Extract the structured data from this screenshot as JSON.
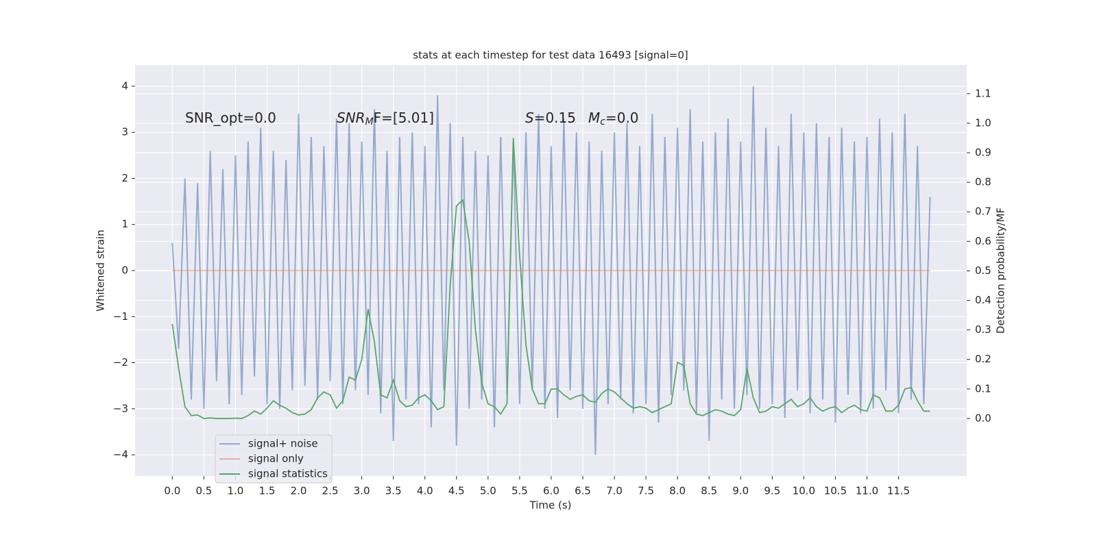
{
  "chart_data": {
    "type": "line",
    "title": "stats at each timestep for test data 16493 [signal=0]",
    "xlabel": "Time (s)",
    "ylabel": "Whitened strain",
    "y2label": "Detection probability/MF",
    "annotations": [
      {
        "text": "SNR_opt=0.0"
      },
      {
        "math": "SNR",
        "sub": "M",
        "text": "F=[5.01]"
      },
      {
        "math": "S",
        "text": "=0.15"
      },
      {
        "math": "M",
        "sub": "c",
        "text": "=0.0"
      }
    ],
    "xlim": [
      -0.59,
      12.58
    ],
    "ylim": [
      -4.46,
      4.46
    ],
    "y2lim": [
      -0.195,
      1.197
    ],
    "grid": true,
    "legend": "lower left",
    "xticks": [
      {
        "value": 0,
        "label": "0.0"
      },
      {
        "value": 0.5,
        "label": "0.5"
      },
      {
        "value": 1,
        "label": "1.0"
      },
      {
        "value": 1.5,
        "label": "1.5"
      },
      {
        "value": 2,
        "label": "2.0"
      },
      {
        "value": 2.5,
        "label": "2.5"
      },
      {
        "value": 3,
        "label": "3.0"
      },
      {
        "value": 3.5,
        "label": "3.5"
      },
      {
        "value": 4,
        "label": "4.0"
      },
      {
        "value": 4.5,
        "label": "4.5"
      },
      {
        "value": 5,
        "label": "5.0"
      },
      {
        "value": 5.5,
        "label": "5.5"
      },
      {
        "value": 6,
        "label": "6.0"
      },
      {
        "value": 6.5,
        "label": "6.5"
      },
      {
        "value": 7,
        "label": "7.0"
      },
      {
        "value": 7.5,
        "label": "7.5"
      },
      {
        "value": 8,
        "label": "8.0"
      },
      {
        "value": 8.5,
        "label": "8.5"
      },
      {
        "value": 9,
        "label": "9.0"
      },
      {
        "value": 9.5,
        "label": "9.5"
      },
      {
        "value": 10,
        "label": "10.0"
      },
      {
        "value": 10.5,
        "label": "10.5"
      },
      {
        "value": 11,
        "label": "11.0"
      },
      {
        "value": 11.5,
        "label": "11.5"
      }
    ],
    "yticks": [
      {
        "value": -4,
        "label": "−4"
      },
      {
        "value": -3,
        "label": "−3"
      },
      {
        "value": -2,
        "label": "−2"
      },
      {
        "value": -1,
        "label": "−1"
      },
      0,
      1,
      2,
      3,
      4
    ],
    "y2ticks": [
      {
        "value": 0,
        "label": "0.0"
      },
      {
        "value": 0.1,
        "label": "0.1"
      },
      {
        "value": 0.2,
        "label": "0.2"
      },
      {
        "value": 0.3,
        "label": "0.3"
      },
      {
        "value": 0.4,
        "label": "0.4"
      },
      {
        "value": 0.5,
        "label": "0.5"
      },
      {
        "value": 0.6,
        "label": "0.6"
      },
      {
        "value": 0.7,
        "label": "0.7"
      },
      {
        "value": 0.8,
        "label": "0.8"
      },
      {
        "value": 0.9,
        "label": "0.9"
      },
      {
        "value": 1,
        "label": "1.0"
      },
      {
        "value": 1.1,
        "label": "1.1"
      }
    ],
    "x": [
      0,
      0.1,
      0.2,
      0.3,
      0.4,
      0.5,
      0.6,
      0.7,
      0.8,
      0.9,
      1,
      1.1,
      1.2,
      1.3,
      1.4,
      1.5,
      1.6,
      1.7,
      1.8,
      1.9,
      2,
      2.1,
      2.2,
      2.3,
      2.4,
      2.5,
      2.6,
      2.7,
      2.8,
      2.9,
      3,
      3.1,
      3.2,
      3.3,
      3.4,
      3.5,
      3.6,
      3.7,
      3.8,
      3.9,
      4,
      4.1,
      4.2,
      4.3,
      4.4,
      4.5,
      4.6,
      4.7,
      4.8,
      4.9,
      5,
      5.1,
      5.2,
      5.3,
      5.4,
      5.5,
      5.6,
      5.7,
      5.8,
      5.9,
      6,
      6.1,
      6.2,
      6.3,
      6.4,
      6.5,
      6.6,
      6.7,
      6.8,
      6.9,
      7,
      7.1,
      7.2,
      7.3,
      7.4,
      7.5,
      7.6,
      7.7,
      7.8,
      7.9,
      8,
      8.1,
      8.2,
      8.3,
      8.4,
      8.5,
      8.6,
      8.7,
      8.8,
      8.9,
      9,
      9.1,
      9.2,
      9.3,
      9.4,
      9.5,
      9.6,
      9.7,
      9.8,
      9.9,
      10,
      10.1,
      10.2,
      10.3,
      10.4,
      10.5,
      10.6,
      10.7,
      10.8,
      10.9,
      11,
      11.1,
      11.2,
      11.3,
      11.4,
      11.5,
      11.6,
      11.7,
      11.8,
      11.9,
      12
    ],
    "series": [
      {
        "name": "signal+ noise",
        "color": "#4c72b0",
        "opacity": 0.55,
        "values": [
          0.6,
          -1.7,
          2.0,
          -2.8,
          1.9,
          -3.0,
          2.6,
          -2.4,
          2.2,
          -2.9,
          2.5,
          -2.7,
          2.8,
          -2.3,
          3.1,
          -2.9,
          2.6,
          -3.0,
          2.4,
          -2.6,
          3.4,
          -2.5,
          2.9,
          -2.8,
          2.7,
          -2.4,
          3.3,
          -2.9,
          3.2,
          -2.6,
          2.8,
          -2.7,
          3.5,
          -3.1,
          2.6,
          -3.7,
          2.9,
          -2.8,
          3.0,
          -2.9,
          2.7,
          -3.4,
          3.8,
          -2.6,
          3.2,
          -3.8,
          2.9,
          -3.0,
          2.6,
          -2.8,
          2.5,
          -3.4,
          2.9,
          -2.7,
          2.8,
          -2.9,
          3.0,
          -2.6,
          3.4,
          -3.0,
          2.7,
          -3.2,
          3.3,
          -2.6,
          3.0,
          -3.0,
          2.8,
          -4.0,
          2.6,
          -2.9,
          3.0,
          -2.8,
          3.2,
          -3.1,
          2.7,
          -2.9,
          3.4,
          -3.3,
          2.9,
          -2.7,
          3.1,
          -2.6,
          3.5,
          -3.1,
          2.8,
          -3.7,
          3.0,
          -2.8,
          3.3,
          -3.0,
          2.8,
          -2.7,
          4.0,
          -3.0,
          3.1,
          -2.9,
          2.7,
          -3.2,
          3.4,
          -2.6,
          3.0,
          -3.1,
          3.2,
          -2.8,
          2.9,
          -3.3,
          3.1,
          -2.7,
          2.8,
          -3.1,
          2.9,
          -3.0,
          3.3,
          -2.6,
          3.0,
          -3.1,
          3.4,
          -2.8,
          2.7,
          -2.9,
          1.6
        ]
      },
      {
        "name": "signal only",
        "color": "#dd8452",
        "opacity": 0.55,
        "values": [
          0,
          0,
          0,
          0,
          0,
          0,
          0,
          0,
          0,
          0,
          0,
          0,
          0,
          0,
          0,
          0,
          0,
          0,
          0,
          0,
          0,
          0,
          0,
          0,
          0,
          0,
          0,
          0,
          0,
          0,
          0,
          0,
          0,
          0,
          0,
          0,
          0,
          0,
          0,
          0,
          0,
          0,
          0,
          0,
          0,
          0,
          0,
          0,
          0,
          0,
          0,
          0,
          0,
          0,
          0,
          0,
          0,
          0,
          0,
          0,
          0,
          0,
          0,
          0,
          0,
          0,
          0,
          0,
          0,
          0,
          0,
          0,
          0,
          0,
          0,
          0,
          0,
          0,
          0,
          0,
          0,
          0,
          0,
          0,
          0,
          0,
          0,
          0,
          0,
          0,
          0,
          0,
          0,
          0,
          0,
          0,
          0,
          0,
          0,
          0,
          0,
          0,
          0,
          0,
          0,
          0,
          0,
          0,
          0,
          0,
          0,
          0,
          0,
          0,
          0,
          0,
          0,
          0,
          0,
          0,
          0
        ]
      },
      {
        "name": "signal statistics",
        "color": "#55a868",
        "opacity": 1,
        "axis": "y2",
        "values": [
          0.32,
          0.17,
          0.04,
          0.01,
          0.012,
          0.0,
          0.002,
          0.0,
          0.0,
          0.0,
          0.001,
          0.0,
          0.01,
          0.025,
          0.015,
          0.035,
          0.06,
          0.045,
          0.035,
          0.02,
          0.012,
          0.015,
          0.03,
          0.07,
          0.09,
          0.08,
          0.035,
          0.06,
          0.14,
          0.13,
          0.2,
          0.37,
          0.26,
          0.08,
          0.07,
          0.13,
          0.06,
          0.04,
          0.045,
          0.07,
          0.08,
          0.06,
          0.03,
          0.04,
          0.45,
          0.72,
          0.74,
          0.6,
          0.3,
          0.12,
          0.05,
          0.04,
          0.015,
          0.05,
          0.95,
          0.55,
          0.25,
          0.1,
          0.05,
          0.05,
          0.1,
          0.1,
          0.08,
          0.065,
          0.075,
          0.08,
          0.06,
          0.055,
          0.085,
          0.1,
          0.09,
          0.07,
          0.05,
          0.035,
          0.04,
          0.035,
          0.02,
          0.03,
          0.04,
          0.05,
          0.19,
          0.18,
          0.05,
          0.015,
          0.01,
          0.02,
          0.03,
          0.025,
          0.015,
          0.01,
          0.03,
          0.17,
          0.07,
          0.02,
          0.025,
          0.04,
          0.035,
          0.05,
          0.065,
          0.04,
          0.05,
          0.07,
          0.04,
          0.025,
          0.035,
          0.04,
          0.02,
          0.035,
          0.045,
          0.03,
          0.025,
          0.08,
          0.07,
          0.025,
          0.025,
          0.045,
          0.1,
          0.105,
          0.06,
          0.025,
          0.025
        ]
      }
    ]
  }
}
